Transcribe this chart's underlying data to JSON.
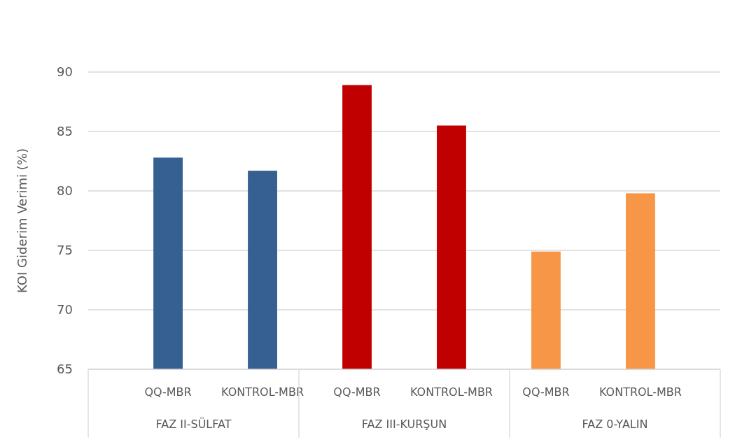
{
  "chart_data": {
    "type": "bar",
    "ylabel": "KOI Giderim Verimi (%)",
    "categories": [
      "QQ-MBR",
      "KONTROL-MBR",
      "QQ-MBR",
      "KONTROL-MBR",
      "QQ-MBR",
      "KONTROL-MBR"
    ],
    "values": [
      82.8,
      81.7,
      88.9,
      85.5,
      74.9,
      79.8
    ],
    "colors": [
      "#366092",
      "#366092",
      "#c00000",
      "#c00000",
      "#f79646",
      "#f79646"
    ],
    "ylim": [
      65,
      90
    ],
    "yticks": [
      65,
      70,
      75,
      80,
      85,
      90
    ],
    "grid": "y",
    "annotations": [
      "FAZ II-SÜLFAT",
      "FAZ III-KURŞUN",
      "FAZ 0-YALIN"
    ]
  }
}
